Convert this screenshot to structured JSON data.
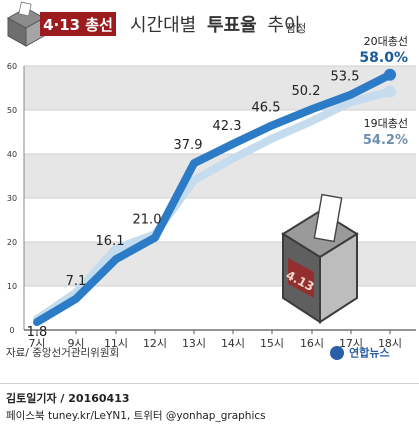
{
  "header": {
    "badge": "4·13 총선",
    "title_plain": "시간대별",
    "title_bold": "투표율",
    "title_end": "추이",
    "note": "잠정"
  },
  "source": "자료/ 중앙선거관리위원회",
  "logo_text": "연합뉴스",
  "credit_line1": "김토일기자 / 20160413",
  "credit_line2": "페이스북 tuney.kr/LeYN1, 트위터 @yonhap_graphics",
  "ballot_box_label": "4.13",
  "colors": {
    "line_20": "#2b7bc6",
    "line_19": "#c4dced",
    "label_20": "#1a5b9c",
    "label_19": "#6f8fb0",
    "badge_bg": "#9b1b1e",
    "band": "#e6e6e6"
  },
  "chart_data": {
    "type": "line",
    "categories": [
      "7시",
      "9시",
      "11시",
      "12시",
      "13시",
      "14시",
      "15시",
      "16시",
      "17시",
      "18시"
    ],
    "ylim": [
      0,
      60
    ],
    "yticks": [
      0,
      10,
      20,
      30,
      40,
      50,
      60
    ],
    "series": [
      {
        "name": "20대총선",
        "values": [
          1.8,
          7.1,
          16.1,
          21.0,
          37.9,
          42.3,
          46.5,
          50.2,
          53.5,
          58.0
        ],
        "labels": [
          "1.8",
          "7.1",
          "16.1",
          "21.0",
          "37.9",
          "42.3",
          "46.5",
          "50.2",
          "53.5",
          "58.0%"
        ]
      },
      {
        "name": "19대총선",
        "values": [
          2.5,
          8.5,
          18.5,
          21.8,
          34.0,
          39.0,
          43.5,
          47.5,
          51.8,
          54.2
        ],
        "labels": [
          "",
          "",
          "",
          "",
          "",
          "",
          "",
          "",
          "",
          "54.2%"
        ]
      }
    ]
  }
}
